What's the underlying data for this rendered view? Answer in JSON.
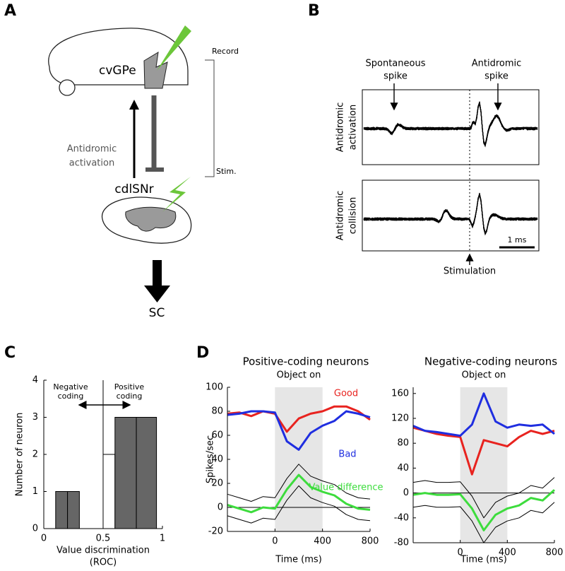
{
  "panel_labels": [
    "A",
    "B",
    "C",
    "D"
  ],
  "diagram_a": {
    "record": "Record",
    "stim": "Stim.",
    "cvgpe": "cvGPe",
    "antidromic": [
      "Antidromic",
      "activation"
    ],
    "cdlsnr": "cdlSNr",
    "sc": "SC"
  },
  "diagram_b": {
    "spontaneous": [
      "Spontaneous",
      "spike"
    ],
    "antidromic": [
      "Antidromic",
      "spike"
    ],
    "row_labels": [
      [
        "Antidromic",
        "activation"
      ],
      [
        "Antidromic",
        "collision"
      ]
    ],
    "scale": "1 ms",
    "stimulation": "Stimulation"
  },
  "chart_data": [
    {
      "type": "histogram",
      "bins": [
        0.1,
        0.2,
        0.3,
        0.5,
        0.6,
        0.78,
        0.95
      ],
      "counts": [
        1,
        1,
        0,
        2,
        3,
        3
      ],
      "colors": [
        "#666666",
        "#666666",
        "#666666",
        "#ffffff",
        "#666666",
        "#666666"
      ],
      "xlim": [
        0,
        1
      ],
      "xticks": [
        0,
        0.5,
        1
      ],
      "ylim": [
        0,
        4
      ],
      "yticks": [
        0,
        1,
        2,
        3,
        4
      ],
      "reference_x": 0.5,
      "ylabel": "Number of neuron",
      "xlabel": "Value discrimination",
      "xlabel_sub": "(ROC)",
      "annotations": [
        [
          "Negative",
          "coding"
        ],
        [
          "Positive",
          "coding"
        ]
      ]
    },
    {
      "type": "line",
      "title": "Positive-coding neurons",
      "annotation": "Object on",
      "shade": [
        0,
        400
      ],
      "x": [
        -400,
        -300,
        -200,
        -100,
        0,
        100,
        200,
        300,
        400,
        500,
        600,
        700,
        800
      ],
      "series": [
        {
          "name": "Good",
          "color": "#e8231f",
          "values": [
            78,
            79,
            76,
            80,
            78,
            63,
            74,
            78,
            80,
            84,
            84,
            80,
            73
          ]
        },
        {
          "name": "Bad",
          "color": "#1f2ee0",
          "values": [
            77,
            78,
            80,
            80,
            79,
            55,
            48,
            62,
            68,
            72,
            80,
            78,
            75
          ]
        },
        {
          "color": "#000000",
          "values": [
            11,
            8,
            5,
            9,
            8,
            24,
            36,
            26,
            22,
            19,
            12,
            8,
            7
          ]
        },
        {
          "color": "#000000",
          "values": [
            -7,
            -10,
            -13,
            -9,
            -10,
            6,
            18,
            8,
            4,
            1,
            -6,
            -10,
            -11
          ]
        },
        {
          "name": "Value difference",
          "color": "#3ddc3d",
          "values": [
            2,
            -1,
            -4,
            0,
            -1,
            15,
            27,
            17,
            13,
            10,
            3,
            -1,
            -2
          ]
        }
      ],
      "xlim": [
        -400,
        800
      ],
      "xticks": [
        0,
        400,
        800
      ],
      "ylim": [
        -20,
        100
      ],
      "yticks": [
        -20,
        0,
        20,
        40,
        60,
        80,
        100
      ],
      "reference_y": 0,
      "ylabel": "Spikes/sec",
      "xlabel": "Time (ms)"
    },
    {
      "type": "line",
      "title": "Negative-coding neurons",
      "annotation": "Object on",
      "shade": [
        0,
        400
      ],
      "x": [
        -400,
        -300,
        -200,
        -100,
        0,
        100,
        200,
        300,
        400,
        500,
        600,
        700,
        800
      ],
      "series": [
        {
          "color": "#e8231f",
          "values": [
            105,
            100,
            95,
            92,
            90,
            30,
            85,
            80,
            75,
            90,
            100,
            95,
            100
          ]
        },
        {
          "color": "#1f2ee0",
          "values": [
            108,
            100,
            98,
            95,
            92,
            110,
            160,
            115,
            105,
            110,
            108,
            110,
            95
          ]
        },
        {
          "color": "#000000",
          "values": [
            17,
            20,
            17,
            17,
            18,
            -5,
            -40,
            -15,
            -5,
            0,
            12,
            8,
            25
          ]
        },
        {
          "color": "#000000",
          "values": [
            -23,
            -20,
            -23,
            -23,
            -22,
            -45,
            -80,
            -55,
            -45,
            -40,
            -28,
            -32,
            -15
          ]
        },
        {
          "color": "#3ddc3d",
          "values": [
            -3,
            0,
            -3,
            -3,
            -2,
            -25,
            -60,
            -35,
            -25,
            -20,
            -8,
            -12,
            5
          ]
        }
      ],
      "xlim": [
        -400,
        800
      ],
      "xticks": [
        0,
        400,
        800
      ],
      "ylim": [
        -80,
        170
      ],
      "yticks": [
        -80,
        -40,
        0,
        40,
        80,
        120,
        160
      ],
      "reference_y": 0,
      "xlabel": "Time (ms)"
    }
  ]
}
